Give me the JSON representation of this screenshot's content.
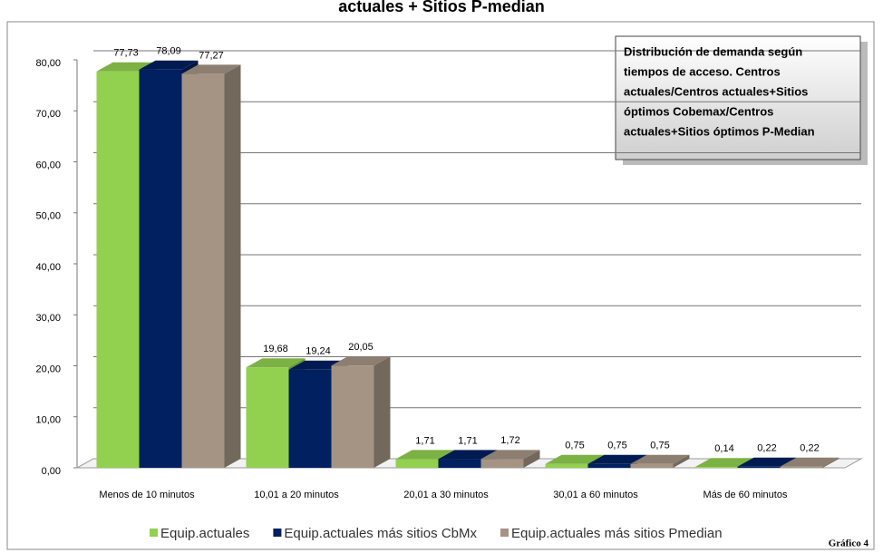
{
  "chart_data": {
    "type": "bar3d",
    "title": "actuales + Sitios P-median",
    "categories": [
      "Menos de 10 minutos",
      "10,01 a 20 minutos",
      "20,01 a 30 minutos",
      "30,01 a 60 minutos",
      "Más de 60 minutos"
    ],
    "series": [
      {
        "name": "Equip.actuales",
        "color": "#92d050",
        "values": [
          77.73,
          19.68,
          1.71,
          0.75,
          0.14
        ],
        "value_labels": [
          "77,73",
          "19,68",
          "1,71",
          "0,75",
          "0,14"
        ]
      },
      {
        "name": "Equip.actuales más sitios CbMx",
        "color": "#002060",
        "values": [
          78.09,
          19.24,
          1.71,
          0.75,
          0.22
        ],
        "value_labels": [
          "78,09",
          "19,24",
          "1,71",
          "0,75",
          "0,22"
        ]
      },
      {
        "name": "Equip.actuales más sitios Pmedian",
        "color": "#a59484",
        "values": [
          77.27,
          20.05,
          1.72,
          0.75,
          0.22
        ],
        "value_labels": [
          "77,27",
          "20,05",
          "1,72",
          "0,75",
          "0,22"
        ]
      }
    ],
    "ylim": [
      0,
      80
    ],
    "yticks": [
      {
        "value": 0,
        "label": "0,00"
      },
      {
        "value": 10,
        "label": "10,00"
      },
      {
        "value": 20,
        "label": "20,00"
      },
      {
        "value": 30,
        "label": "30,00"
      },
      {
        "value": 40,
        "label": "40,00"
      },
      {
        "value": 50,
        "label": "50,00"
      },
      {
        "value": 60,
        "label": "60,00"
      },
      {
        "value": 70,
        "label": "70,00"
      },
      {
        "value": 80,
        "label": "80,00"
      }
    ],
    "grid": true,
    "annotation": [
      "Distribución de demanda según",
      "tiempos de acceso. Centros",
      "actuales/Centros actuales+Sitios",
      "óptimos Cobemax/Centros",
      "actuales+Sitios óptimos P-Median"
    ],
    "footnote": "Gráfico 4"
  }
}
